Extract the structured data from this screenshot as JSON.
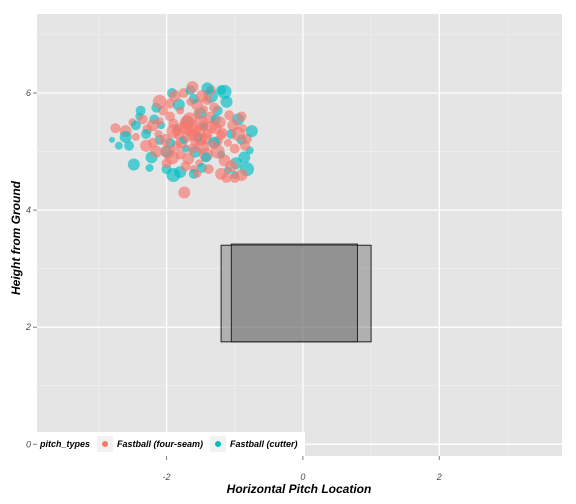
{
  "chart_data": {
    "type": "scatter",
    "xlabel": "Horizontal Pitch Location",
    "ylabel": "Height from Ground",
    "xlim": [
      -3.9,
      3.8
    ],
    "ylim": [
      -0.2,
      7.35
    ],
    "x_ticks": [
      -2,
      0,
      2
    ],
    "x_tick_labels": [
      "-2",
      "0",
      "2"
    ],
    "y_ticks": [
      0,
      2,
      4,
      6
    ],
    "y_tick_labels": [
      "0",
      "2",
      "4",
      "6"
    ],
    "grid": true,
    "legend": {
      "title": "pitch_types",
      "position": "bottom-left"
    },
    "strike_zones": [
      {
        "x_min": -1.2,
        "x_max": 1.0,
        "y_min": 1.75,
        "y_max": 3.4
      },
      {
        "x_min": -1.05,
        "x_max": 0.8,
        "y_min": 1.75,
        "y_max": 3.42
      }
    ],
    "series": [
      {
        "name": "Fastball (four-seam)",
        "color": "#F8766D",
        "points": [
          [
            -2.28,
            5.38
          ],
          [
            -2.2,
            5.45
          ],
          [
            -2.1,
            5.52
          ],
          [
            -2.02,
            5.2
          ],
          [
            -1.95,
            5.6
          ],
          [
            -1.9,
            5.35
          ],
          [
            -1.85,
            5.1
          ],
          [
            -1.8,
            5.7
          ],
          [
            -1.75,
            5.42
          ],
          [
            -1.7,
            5.25
          ],
          [
            -1.66,
            5.55
          ],
          [
            -1.62,
            5.05
          ],
          [
            -1.58,
            5.38
          ],
          [
            -1.55,
            5.65
          ],
          [
            -1.5,
            5.2
          ],
          [
            -1.46,
            5.45
          ],
          [
            -1.42,
            4.95
          ],
          [
            -1.4,
            5.3
          ],
          [
            -1.36,
            5.58
          ],
          [
            -1.32,
            5.12
          ],
          [
            -1.28,
            5.4
          ],
          [
            -1.25,
            5.0
          ],
          [
            -1.2,
            5.28
          ],
          [
            -1.15,
            4.85
          ],
          [
            -1.1,
            5.15
          ],
          [
            -1.05,
            4.75
          ],
          [
            -1.0,
            5.05
          ],
          [
            -0.95,
            5.3
          ],
          [
            -0.9,
            5.6
          ],
          [
            -1.88,
            5.95
          ],
          [
            -1.75,
            6.0
          ],
          [
            -1.65,
            5.85
          ],
          [
            -1.55,
            5.8
          ],
          [
            -2.0,
            4.8
          ],
          [
            -1.92,
            4.9
          ],
          [
            -1.72,
            4.75
          ],
          [
            -1.52,
            4.8
          ],
          [
            -1.48,
            5.95
          ],
          [
            -1.3,
            5.75
          ],
          [
            -1.22,
            5.5
          ],
          [
            -2.35,
            5.55
          ],
          [
            -2.45,
            5.25
          ],
          [
            -2.6,
            5.35
          ],
          [
            -2.75,
            5.4
          ],
          [
            -2.5,
            5.5
          ],
          [
            -2.15,
            5.0
          ],
          [
            -2.05,
            5.7
          ],
          [
            -1.98,
            5.0
          ],
          [
            -1.8,
            4.95
          ],
          [
            -1.68,
            4.88
          ],
          [
            -1.6,
            4.7
          ],
          [
            -1.38,
            4.7
          ],
          [
            -1.2,
            4.62
          ],
          [
            -0.85,
            5.1
          ],
          [
            -0.88,
            5.4
          ],
          [
            -1.02,
            5.45
          ],
          [
            -1.08,
            5.62
          ],
          [
            -1.45,
            5.72
          ],
          [
            -1.35,
            6.05
          ],
          [
            -1.62,
            6.1
          ],
          [
            -1.95,
            5.82
          ],
          [
            -2.1,
            5.85
          ],
          [
            -1.78,
            5.15
          ],
          [
            -1.58,
            5.18
          ],
          [
            -1.42,
            5.22
          ],
          [
            -1.7,
            5.5
          ],
          [
            -1.82,
            5.28
          ],
          [
            -1.52,
            5.32
          ],
          [
            -1.9,
            5.48
          ],
          [
            -1.64,
            5.35
          ],
          [
            -1.5,
            5.5
          ],
          [
            -1.72,
            5.4
          ],
          [
            -1.25,
            5.18
          ],
          [
            -1.35,
            5.42
          ],
          [
            -1.48,
            5.08
          ],
          [
            -1.6,
            5.28
          ],
          [
            -1.85,
            5.35
          ],
          [
            -2.12,
            5.3
          ],
          [
            -1.74,
            4.3
          ],
          [
            -1.0,
            4.55
          ],
          [
            -0.82,
            5.22
          ],
          [
            -0.9,
            4.6
          ],
          [
            -1.12,
            4.55
          ],
          [
            -1.55,
            4.62
          ],
          [
            -2.2,
            5.15
          ],
          [
            -2.3,
            5.1
          ],
          [
            -1.4,
            5.88
          ],
          [
            -1.18,
            5.32
          ]
        ],
        "sizes": [
          5,
          6,
          4,
          6,
          5,
          7,
          5,
          4,
          6,
          5,
          7,
          5,
          6,
          4,
          6,
          5,
          7,
          5,
          6,
          4,
          6,
          7,
          5,
          6,
          4,
          6,
          5,
          7,
          5,
          6,
          5,
          4,
          6,
          5,
          7,
          5,
          4,
          6,
          5,
          6,
          5,
          4,
          6,
          5,
          4,
          6,
          5,
          7,
          5,
          6,
          4,
          5,
          6,
          5,
          4,
          6,
          5,
          4,
          5,
          6,
          5,
          7,
          6,
          5,
          6,
          7,
          5,
          6,
          5,
          6,
          7,
          6,
          5,
          6,
          7,
          6,
          5,
          4,
          6,
          5,
          5,
          6,
          5,
          4,
          5,
          6,
          5,
          5
        ]
      },
      {
        "name": "Fastball (cutter)",
        "color": "#00BFC4",
        "points": [
          [
            -2.55,
            5.1
          ],
          [
            -2.48,
            4.78
          ],
          [
            -2.4,
            5.6
          ],
          [
            -2.3,
            5.3
          ],
          [
            -2.22,
            4.9
          ],
          [
            -2.15,
            5.75
          ],
          [
            -2.08,
            5.45
          ],
          [
            -2.0,
            5.0
          ],
          [
            -1.92,
            6.0
          ],
          [
            -1.82,
            5.8
          ],
          [
            -1.72,
            5.05
          ],
          [
            -1.6,
            5.9
          ],
          [
            -1.5,
            5.65
          ],
          [
            -1.42,
            4.9
          ],
          [
            -1.35,
            5.95
          ],
          [
            -1.28,
            5.55
          ],
          [
            -1.2,
            4.95
          ],
          [
            -1.12,
            5.85
          ],
          [
            -1.05,
            5.3
          ],
          [
            -0.98,
            4.8
          ],
          [
            -0.9,
            5.2
          ],
          [
            -0.82,
            4.7
          ],
          [
            -0.78,
            5.02
          ],
          [
            -0.75,
            5.35
          ],
          [
            -1.2,
            6.05
          ],
          [
            -1.15,
            6.02
          ],
          [
            -1.0,
            4.6
          ],
          [
            -1.6,
            4.62
          ],
          [
            -1.8,
            4.65
          ],
          [
            -2.0,
            4.7
          ],
          [
            -2.25,
            4.72
          ],
          [
            -2.6,
            5.25
          ],
          [
            -2.38,
            5.7
          ],
          [
            -1.45,
            5.42
          ],
          [
            -1.7,
            5.5
          ],
          [
            -1.55,
            5.25
          ],
          [
            -1.85,
            5.4
          ],
          [
            -1.3,
            5.15
          ],
          [
            -2.1,
            5.2
          ],
          [
            -1.4,
            6.08
          ],
          [
            -1.9,
            4.6
          ],
          [
            -1.65,
            6.05
          ],
          [
            -0.95,
            5.55
          ],
          [
            -1.75,
            5.2
          ],
          [
            -1.25,
            5.7
          ],
          [
            -2.7,
            5.1
          ],
          [
            -2.8,
            5.2
          ],
          [
            -2.45,
            5.45
          ],
          [
            -1.58,
            5.0
          ],
          [
            -1.95,
            5.15
          ],
          [
            -1.1,
            4.68
          ],
          [
            -0.86,
            4.9
          ],
          [
            -2.18,
            5.55
          ],
          [
            -1.48,
            4.72
          ]
        ],
        "sizes": [
          5,
          6,
          4,
          5,
          6,
          5,
          4,
          6,
          5,
          6,
          4,
          5,
          6,
          5,
          7,
          5,
          4,
          6,
          5,
          6,
          5,
          7,
          4,
          6,
          5,
          7,
          4,
          5,
          6,
          5,
          4,
          6,
          5,
          4,
          6,
          5,
          4,
          6,
          5,
          6,
          7,
          5,
          6,
          4,
          5,
          4,
          3,
          5,
          6,
          5,
          4,
          6,
          5,
          5
        ]
      }
    ]
  }
}
